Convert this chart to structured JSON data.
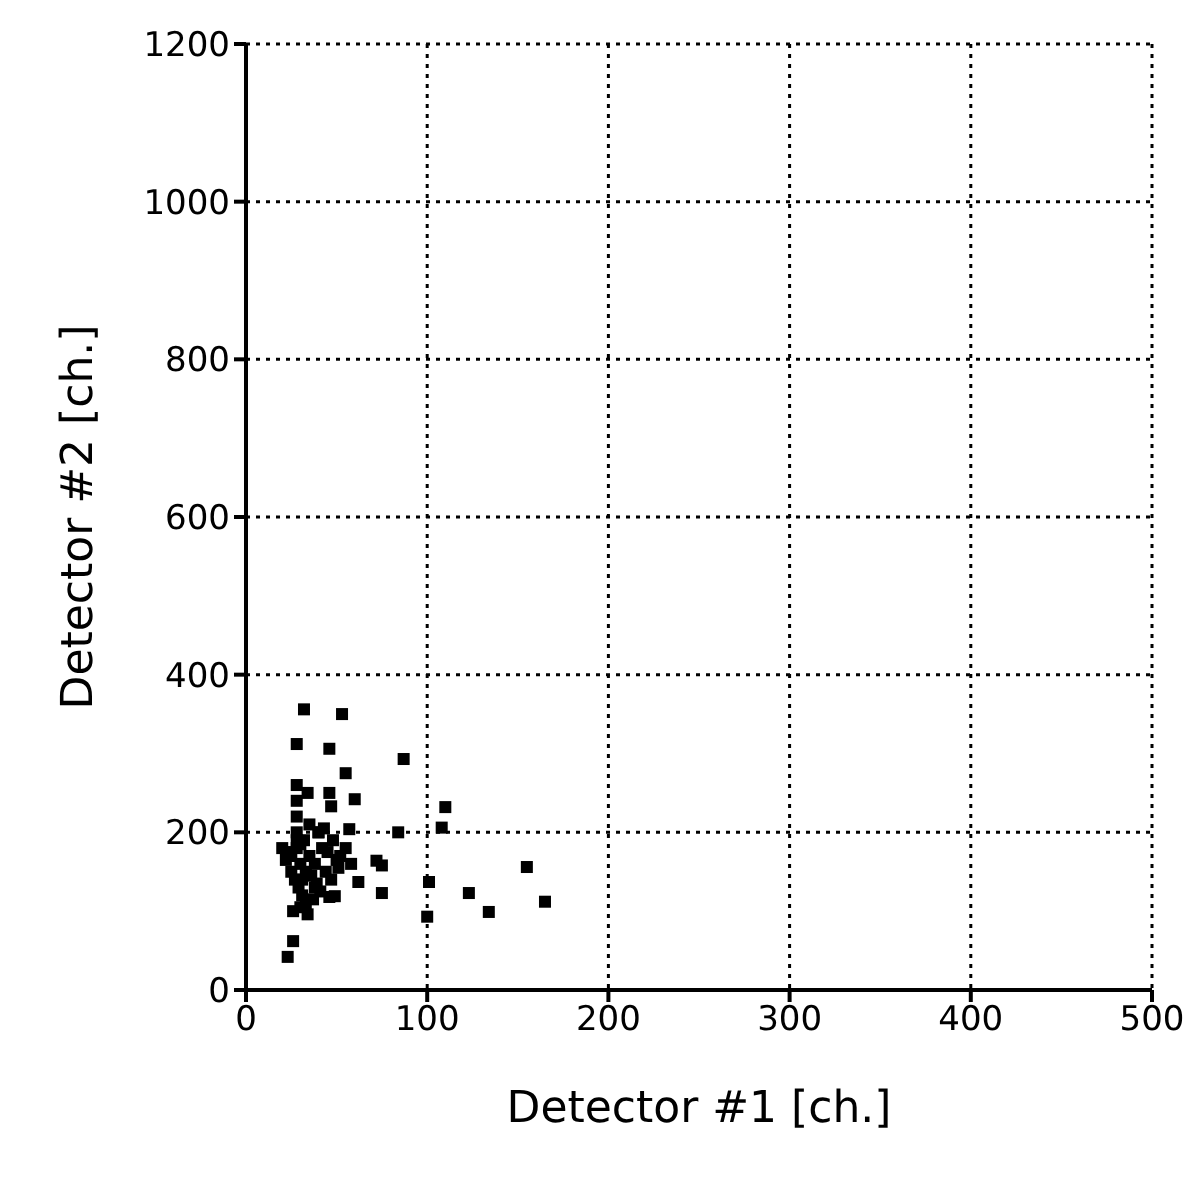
{
  "chart_data": {
    "type": "scatter",
    "xlabel": "Detector #1 [ch.]",
    "ylabel": "Detector #2 [ch.]",
    "xlim": [
      0,
      500
    ],
    "ylim": [
      0,
      1200
    ],
    "xticks": [
      0,
      100,
      200,
      300,
      400,
      500
    ],
    "yticks": [
      0,
      200,
      400,
      600,
      800,
      1000,
      1200
    ],
    "grid": true,
    "marker": "square",
    "series": [
      {
        "color": "#000000",
        "x": [
          32,
          53,
          28,
          46,
          87,
          55,
          28,
          28,
          28,
          28,
          28,
          34,
          46,
          60,
          47,
          110,
          108,
          84,
          57,
          155,
          75,
          123,
          134,
          165,
          101,
          100,
          72,
          75,
          62,
          49,
          26,
          23,
          34,
          20,
          22,
          25,
          24,
          30,
          32,
          35,
          38,
          40,
          42,
          45,
          48,
          50,
          52,
          27,
          29,
          31,
          33,
          36,
          39,
          41,
          44,
          47,
          51,
          30,
          33,
          37,
          26,
          28,
          35,
          43,
          25,
          30,
          38,
          46,
          55,
          58,
          31,
          40
        ],
        "values": [
          356,
          350,
          312,
          306,
          293,
          275,
          260,
          240,
          220,
          200,
          180,
          250,
          250,
          242,
          233,
          232,
          206,
          200,
          204,
          156,
          123,
          123,
          99,
          112,
          137,
          93,
          164,
          158,
          137,
          119,
          62,
          42,
          96,
          180,
          165,
          150,
          175,
          185,
          190,
          170,
          160,
          200,
          180,
          175,
          190,
          165,
          170,
          140,
          130,
          120,
          110,
          145,
          135,
          125,
          150,
          140,
          155,
          160,
          150,
          115,
          100,
          190,
          210,
          205,
          170,
          105,
          130,
          118,
          180,
          160,
          140,
          200
        ]
      }
    ]
  }
}
